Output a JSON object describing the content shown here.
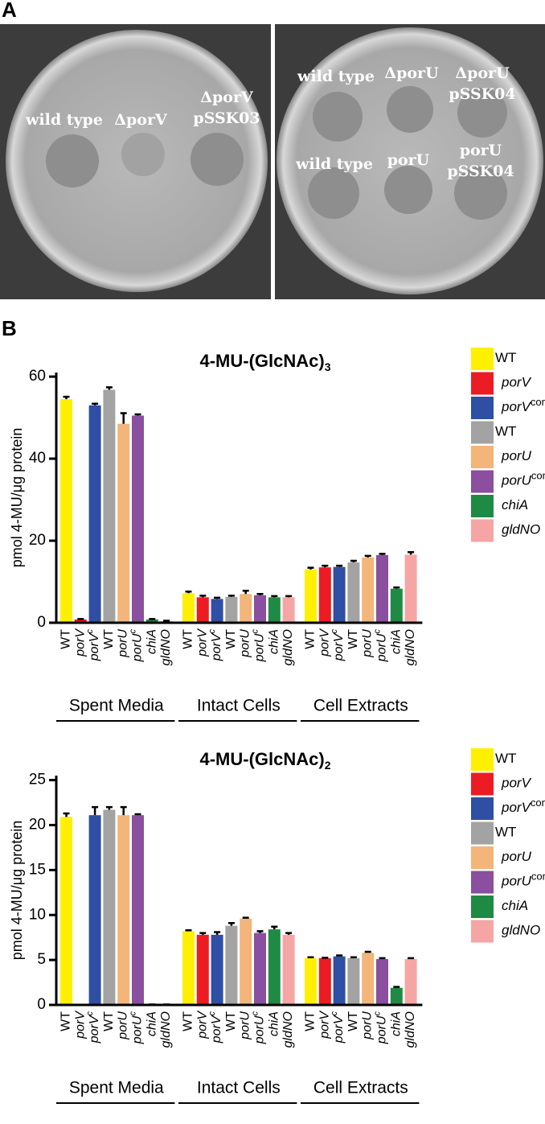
{
  "panel_labels": [
    "A",
    "B"
  ],
  "plates": [
    {
      "labels": [
        {
          "lines": [
            "wild type"
          ]
        },
        {
          "lines": [
            "ΔporV"
          ]
        },
        {
          "lines": [
            "ΔporV",
            "pSSK03"
          ]
        }
      ]
    },
    {
      "labels": [
        {
          "lines": [
            "wild type"
          ]
        },
        {
          "lines": [
            "ΔporU"
          ]
        },
        {
          "lines": [
            "ΔporU",
            "pSSK04"
          ]
        },
        {
          "lines": [
            "wild type"
          ]
        },
        {
          "lines": [
            "porU"
          ]
        },
        {
          "lines": [
            "porU",
            "pSSK04"
          ]
        }
      ]
    }
  ],
  "chart_data": [
    {
      "type": "bar",
      "title": "4-MU-(GlcNAc)",
      "title_sub": "3",
      "y_label": "pmol 4-MU/μg protein",
      "groups": [
        "Spent Media",
        "Intact Cells",
        "Cell Extracts"
      ],
      "ylim": [
        0,
        61
      ],
      "yticks": [
        0,
        20,
        40,
        60
      ],
      "series": [
        {
          "name": "WT",
          "tick": "WT",
          "italic": false,
          "color": "#ffef00",
          "values": [
            54.5,
            7.2,
            13.0
          ],
          "errors": [
            0.6,
            0.4,
            0.4
          ]
        },
        {
          "name": "porV",
          "tick": "porV",
          "italic": true,
          "color": "#ec1c24",
          "values": [
            0.8,
            6.2,
            13.5
          ],
          "errors": [
            0.1,
            0.4,
            0.4
          ]
        },
        {
          "name": "porV",
          "sup": "complemented",
          "tick": "porV",
          "tick_sup": "c",
          "italic": true,
          "color": "#2e4fa3",
          "values": [
            53.0,
            5.8,
            13.6
          ],
          "errors": [
            0.4,
            0.3,
            0.3
          ]
        },
        {
          "name": "WT",
          "tick": "WT",
          "italic": false,
          "color": "#a3a3a3",
          "values": [
            56.8,
            6.3,
            14.7
          ],
          "errors": [
            0.6,
            0.3,
            0.4
          ]
        },
        {
          "name": "porU",
          "tick": "porU",
          "italic": true,
          "color": "#f3b57a",
          "values": [
            48.5,
            7.0,
            15.9
          ],
          "errors": [
            2.6,
            0.8,
            0.4
          ]
        },
        {
          "name": "porU",
          "sup": "complemented",
          "tick": "porU",
          "tick_sup": "c",
          "italic": true,
          "color": "#8a4f9e",
          "values": [
            50.5,
            6.7,
            16.5
          ],
          "errors": [
            0.3,
            0.3,
            0.3
          ]
        },
        {
          "name": "chiA",
          "tick": "chiA",
          "italic": true,
          "color": "#1f8a43",
          "values": [
            0.8,
            6.2,
            8.3
          ],
          "errors": [
            0.1,
            0.3,
            0.3
          ]
        },
        {
          "name": "gldNO",
          "tick": "gldNO",
          "italic": true,
          "color": "#f6a5a5",
          "values": [
            0.4,
            6.2,
            16.6
          ],
          "errors": [
            0.1,
            0.3,
            0.6
          ]
        }
      ]
    },
    {
      "type": "bar",
      "title": "4-MU-(GlcNAc)",
      "title_sub": "2",
      "y_label": "pmol 4-MU/μg protein",
      "groups": [
        "Spent Media",
        "Intact Cells",
        "Cell Extracts"
      ],
      "ylim": [
        0,
        25.5
      ],
      "yticks": [
        0,
        5,
        10,
        15,
        20,
        25
      ],
      "series": [
        {
          "name": "WT",
          "tick": "WT",
          "italic": false,
          "color": "#ffef00",
          "values": [
            20.9,
            8.2,
            5.2
          ],
          "errors": [
            0.4,
            0.1,
            0.1
          ]
        },
        {
          "name": "porV",
          "tick": "porV",
          "italic": true,
          "color": "#ec1c24",
          "values": [
            0,
            7.8,
            5.2
          ],
          "errors": [
            0,
            0.2,
            0.05
          ]
        },
        {
          "name": "porV",
          "sup": "complemented",
          "tick": "porV",
          "tick_sup": "c",
          "italic": true,
          "color": "#2e4fa3",
          "values": [
            21.1,
            7.8,
            5.4
          ],
          "errors": [
            0.9,
            0.3,
            0.1
          ]
        },
        {
          "name": "WT",
          "tick": "WT",
          "italic": false,
          "color": "#a3a3a3",
          "values": [
            21.7,
            8.8,
            5.2
          ],
          "errors": [
            0.3,
            0.3,
            0.1
          ]
        },
        {
          "name": "porU",
          "tick": "porU",
          "italic": true,
          "color": "#f3b57a",
          "values": [
            21.1,
            9.6,
            5.8
          ],
          "errors": [
            0.9,
            0.1,
            0.1
          ]
        },
        {
          "name": "porU",
          "sup": "complemented",
          "tick": "porU",
          "tick_sup": "c",
          "italic": true,
          "color": "#8a4f9e",
          "values": [
            21.1,
            8.0,
            5.1
          ],
          "errors": [
            0.1,
            0.2,
            0.1
          ]
        },
        {
          "name": "chiA",
          "tick": "chiA",
          "italic": true,
          "color": "#1f8a43",
          "values": [
            0.05,
            8.4,
            1.9
          ],
          "errors": [
            0,
            0.3,
            0.1
          ]
        },
        {
          "name": "gldNO",
          "tick": "gldNO",
          "italic": true,
          "color": "#f6a5a5",
          "values": [
            0.05,
            7.8,
            5.1
          ],
          "errors": [
            0,
            0.2,
            0.1
          ]
        }
      ]
    }
  ]
}
